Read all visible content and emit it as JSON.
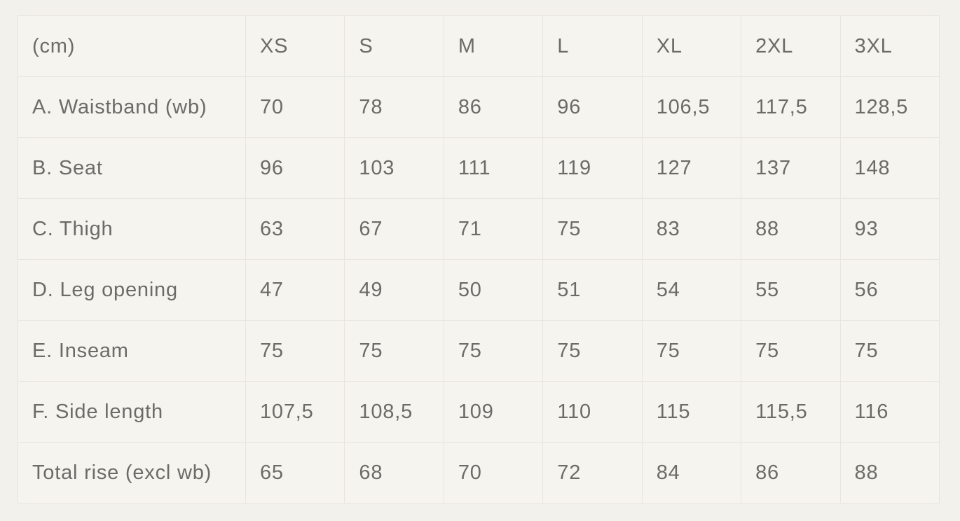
{
  "theme": {
    "page_bg": "#f3f1ec",
    "cell_bg": "#f5f4ef",
    "border_color": "#e8e5e0",
    "text_color": "#6c6b68"
  },
  "chart_data": {
    "type": "table",
    "unit": "cm",
    "columns": [
      "(cm)",
      "XS",
      "S",
      "M",
      "L",
      "XL",
      "2XL",
      "3XL"
    ],
    "rows": [
      {
        "label": "A. Waistband (wb)",
        "values": [
          "70",
          "78",
          "86",
          "96",
          "106,5",
          "117,5",
          "128,5"
        ]
      },
      {
        "label": "B. Seat",
        "values": [
          "96",
          "103",
          "111",
          "119",
          "127",
          "137",
          "148"
        ]
      },
      {
        "label": "C. Thigh",
        "values": [
          "63",
          "67",
          "71",
          "75",
          "83",
          "88",
          "93"
        ]
      },
      {
        "label": "D. Leg opening",
        "values": [
          "47",
          "49",
          "50",
          "51",
          "54",
          "55",
          "56"
        ]
      },
      {
        "label": "E. Inseam",
        "values": [
          "75",
          "75",
          "75",
          "75",
          "75",
          "75",
          "75"
        ]
      },
      {
        "label": "F. Side length",
        "values": [
          "107,5",
          "108,5",
          "109",
          "110",
          "115",
          "115,5",
          "116"
        ]
      },
      {
        "label": "Total rise (excl wb)",
        "values": [
          "65",
          "68",
          "70",
          "72",
          "84",
          "86",
          "88"
        ]
      }
    ]
  }
}
